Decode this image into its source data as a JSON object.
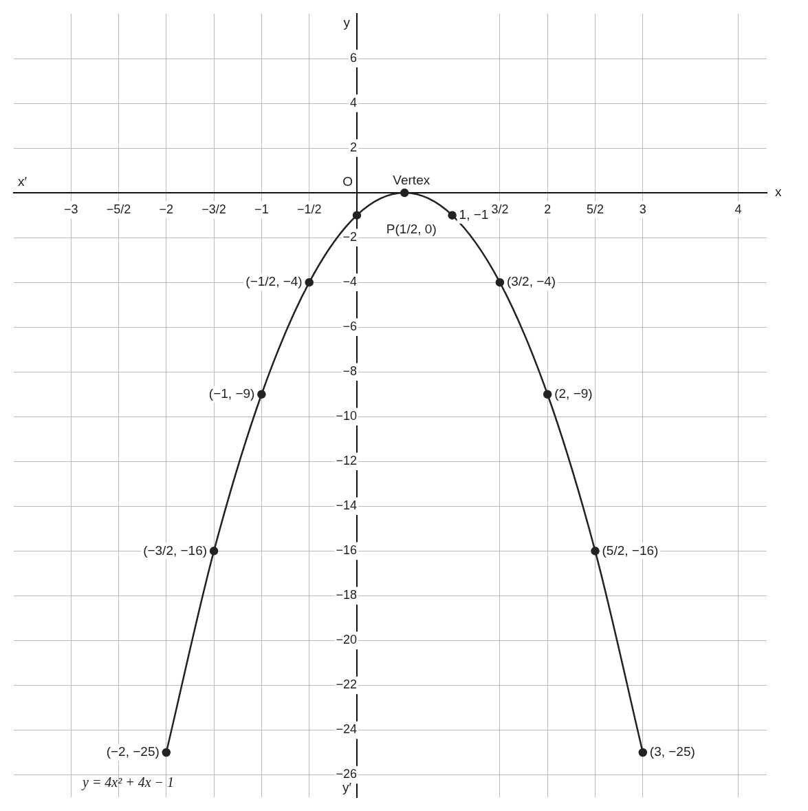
{
  "chart_data": {
    "type": "line",
    "xlabel": "x",
    "ylabel": "y",
    "x": [
      -2,
      -1.5,
      -1,
      -0.5,
      0,
      0.5,
      1,
      1.5,
      2,
      2.5,
      3
    ],
    "series": [
      {
        "color": "#222222",
        "values": [
          -25,
          -16,
          -9,
          -4,
          -1,
          0,
          -1,
          -4,
          -9,
          -16,
          -25
        ]
      }
    ],
    "xlim": [
      -3.6,
      4.3
    ],
    "ylim": [
      -27,
      8
    ],
    "xticks": [
      -3,
      {
        "value": -2.5,
        "label": "−5/2"
      },
      -2,
      {
        "value": -1.5,
        "label": "−3/2"
      },
      -1,
      {
        "value": -0.5,
        "label": "−1/2"
      },
      {
        "value": 1.5,
        "label": "3/2"
      },
      2,
      {
        "value": 2.5,
        "label": "5/2"
      },
      3,
      4
    ],
    "yticks": [
      -26,
      -24,
      -22,
      -20,
      -18,
      -16,
      -14,
      -12,
      -10,
      -8,
      -6,
      -4,
      -2,
      2,
      4,
      6
    ],
    "grid": true,
    "marker": "circle",
    "line_style": "solid",
    "annotations": [
      {
        "text": "(−2, −25)",
        "x": -2,
        "y": -25
      },
      {
        "text": "(−3/2, −16)",
        "x": -1.5,
        "y": -16
      },
      {
        "text": "(−1, −9)",
        "x": -1,
        "y": -9
      },
      {
        "text": "(−1/2, −4)",
        "x": -0.5,
        "y": -4
      },
      {
        "text": "Vertex",
        "x": 0.5,
        "y": 0
      },
      {
        "text": "P(1/2, 0)",
        "x": 0.5,
        "y": 0
      },
      {
        "text": "1, −1",
        "x": 1,
        "y": -1
      },
      {
        "text": "(3/2, −4)",
        "x": 1.5,
        "y": -4
      },
      {
        "text": "(2, −9)",
        "x": 2,
        "y": -9
      },
      {
        "text": "(5/2, −16)",
        "x": 2.5,
        "y": -16
      },
      {
        "text": "(3, −25)",
        "x": 3,
        "y": -25
      },
      "O",
      "x′",
      "y′",
      "y = 4x² + 4x − 1"
    ]
  }
}
